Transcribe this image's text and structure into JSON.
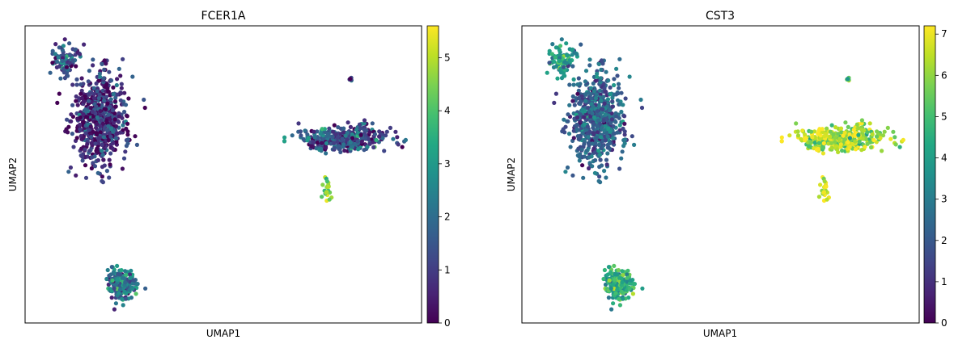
{
  "chart_data": [
    {
      "type": "scatter",
      "title": "FCER1A",
      "xlabel": "UMAP1",
      "ylabel": "UMAP2",
      "xlim": [
        0,
        100
      ],
      "ylim": [
        0,
        100
      ],
      "grid": false,
      "colorbar": {
        "label": "",
        "range": [
          0,
          5.6
        ],
        "ticks": [
          0,
          1,
          2,
          3,
          4,
          5
        ],
        "colormap": "viridis"
      },
      "clusters": [
        {
          "name": "",
          "center": [
            19,
            68
          ],
          "spread": [
            6,
            14
          ],
          "count": 640,
          "mean": 0.7
        },
        {
          "name": "",
          "center": [
            10,
            88
          ],
          "spread": [
            3,
            5
          ],
          "count": 90,
          "mean": 1.4
        },
        {
          "name": "",
          "center": [
            80,
            62
          ],
          "spread": [
            10,
            3.8
          ],
          "count": 360,
          "mean": 1.4
        },
        {
          "name": "",
          "center": [
            76,
            45
          ],
          "spread": [
            0.8,
            4
          ],
          "count": 22,
          "mean": 4.0
        },
        {
          "name": "",
          "center": [
            82,
            82
          ],
          "spread": [
            0.5,
            0.5
          ],
          "count": 6,
          "mean": 1.8
        },
        {
          "name": "",
          "center": [
            24.5,
            13
          ],
          "spread": [
            3.2,
            4.5
          ],
          "count": 220,
          "mean": 2.1
        }
      ]
    },
    {
      "type": "scatter",
      "title": "CST3",
      "xlabel": "UMAP1",
      "ylabel": "UMAP2",
      "xlim": [
        0,
        100
      ],
      "ylim": [
        0,
        100
      ],
      "grid": false,
      "colorbar": {
        "label": "",
        "range": [
          0,
          7.2
        ],
        "ticks": [
          0,
          1,
          2,
          3,
          4,
          5,
          6,
          7
        ],
        "colormap": "viridis"
      },
      "clusters": [
        {
          "name": "",
          "center": [
            19,
            68
          ],
          "spread": [
            6,
            14
          ],
          "count": 640,
          "mean": 2.2
        },
        {
          "name": "",
          "center": [
            10,
            88
          ],
          "spread": [
            3,
            5
          ],
          "count": 90,
          "mean": 3.8
        },
        {
          "name": "",
          "center": [
            80,
            62
          ],
          "spread": [
            10,
            3.8
          ],
          "count": 360,
          "mean": 6.3
        },
        {
          "name": "",
          "center": [
            76,
            45
          ],
          "spread": [
            0.8,
            4
          ],
          "count": 22,
          "mean": 6.2
        },
        {
          "name": "",
          "center": [
            82,
            82
          ],
          "spread": [
            0.5,
            0.5
          ],
          "count": 6,
          "mean": 6.0
        },
        {
          "name": "",
          "center": [
            24.5,
            13
          ],
          "spread": [
            3.2,
            4.5
          ],
          "count": 220,
          "mean": 4.4
        }
      ]
    }
  ]
}
